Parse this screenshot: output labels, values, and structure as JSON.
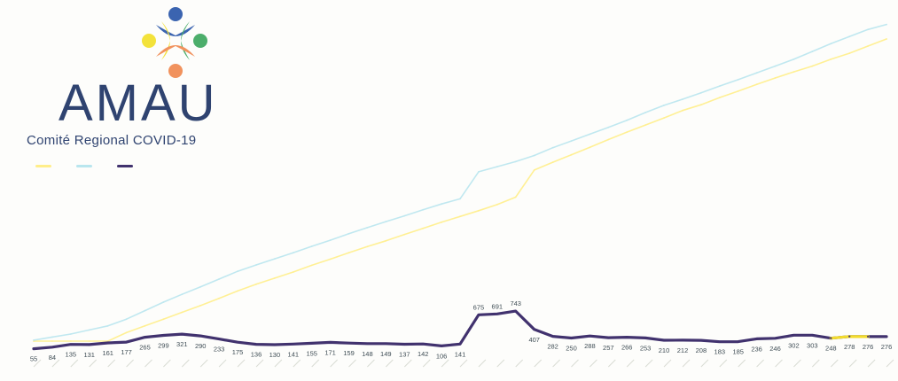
{
  "logo": {
    "title": "AMAU",
    "subtitle": "Comité Regional COVID-19",
    "icon": "amau-people-logo",
    "colors": {
      "blue": "#3b64b0",
      "green": "#4cae6b",
      "yellow": "#f3e23a",
      "orange": "#f1925d"
    }
  },
  "colors": {
    "series_1": "#ffee8a",
    "series_2": "#b9e6ee",
    "series_3": "#41326e",
    "series_3_highlight": "#f3dc2c",
    "data_label": "#3f4d55",
    "grid_text": "#d9dcd4"
  },
  "chart_data": {
    "type": "line",
    "title": "",
    "xlabel": "",
    "ylabel": "",
    "grid": false,
    "legend_position": "top-left",
    "x": [
      1,
      2,
      3,
      4,
      5,
      6,
      7,
      8,
      9,
      10,
      11,
      12,
      13,
      14,
      15,
      16,
      17,
      18,
      19,
      20,
      21,
      22,
      23,
      24,
      25,
      26,
      27,
      28,
      29,
      30,
      31,
      32,
      33,
      34,
      35,
      36,
      37,
      38,
      39,
      40,
      41,
      42,
      43,
      44,
      45,
      46,
      47
    ],
    "series": [
      {
        "name": "",
        "color_key": "series_3",
        "highlight_segment": [
          44,
          45
        ],
        "labels_visible": true,
        "values": [
          55,
          84,
          135,
          131,
          161,
          177,
          265,
          299,
          321,
          290,
          233,
          175,
          136,
          130,
          141,
          155,
          171,
          159,
          148,
          149,
          137,
          142,
          106,
          141,
          675,
          691,
          743,
          407,
          282,
          250,
          288,
          257,
          266,
          253,
          210,
          212,
          208,
          183,
          185,
          236,
          246,
          302,
          303,
          248,
          278,
          276,
          276
        ]
      },
      {
        "name": "",
        "color_key": "series_2",
        "labels_visible": false,
        "values": [
          30,
          120,
          210,
          330,
          450,
          650,
          900,
          1150,
          1380,
          1600,
          1830,
          2060,
          2250,
          2430,
          2610,
          2800,
          2980,
          3170,
          3350,
          3530,
          3700,
          3880,
          4050,
          4200,
          5000,
          5150,
          5300,
          5480,
          5710,
          5910,
          6110,
          6310,
          6520,
          6750,
          6960,
          7140,
          7330,
          7530,
          7720,
          7920,
          8120,
          8320,
          8550,
          8780,
          8990,
          9200,
          9350
        ]
      },
      {
        "name": "",
        "color_key": "series_1",
        "labels_visible": false,
        "values": [
          0,
          0,
          0,
          0,
          0,
          250,
          450,
          650,
          850,
          1050,
          1260,
          1480,
          1680,
          1860,
          2040,
          2240,
          2420,
          2610,
          2790,
          2960,
          3150,
          3330,
          3510,
          3680,
          3850,
          4030,
          4250,
          5050,
          5280,
          5500,
          5720,
          5950,
          6170,
          6380,
          6590,
          6810,
          6980,
          7190,
          7380,
          7580,
          7770,
          7950,
          8120,
          8320,
          8500,
          8710,
          8920
        ]
      }
    ]
  }
}
